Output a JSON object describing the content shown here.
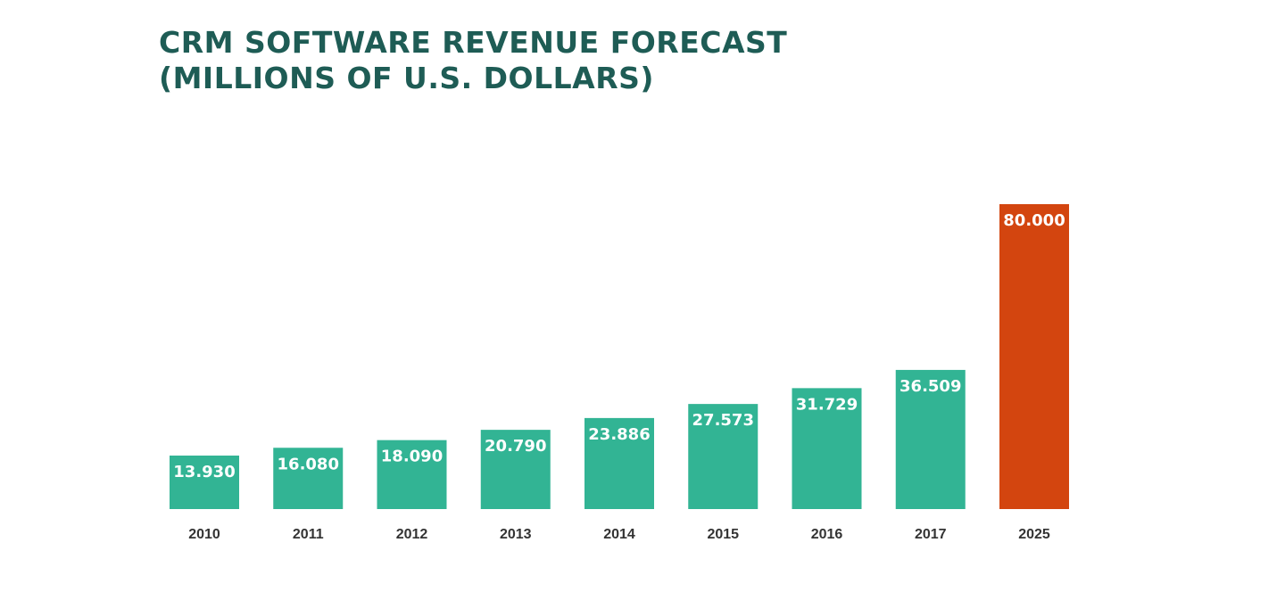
{
  "chart_data": {
    "type": "bar",
    "title_lines": [
      "CRM SOFTWARE REVENUE FORECAST",
      "(MILLIONS OF U.S. DOLLARS)"
    ],
    "xlabel": "",
    "ylabel": "",
    "categories": [
      "2010",
      "2011",
      "2012",
      "2013",
      "2014",
      "2015",
      "2016",
      "2017",
      "2025"
    ],
    "values": [
      13930,
      16080,
      18090,
      20790,
      23886,
      27573,
      31729,
      36509,
      80000
    ],
    "data_labels": [
      "13.930",
      "16.080",
      "18.090",
      "20.790",
      "23.886",
      "27.573",
      "31.729",
      "36.509",
      "80.000"
    ],
    "ylim": [
      0,
      80000
    ],
    "grid": false,
    "legend": "none",
    "colors": {
      "actual": "#32b494",
      "forecast": "#d3450f",
      "title": "#1e5c55",
      "tick_text": "#333333",
      "label_text": "#ffffff"
    },
    "forecast_categories": [
      "2025"
    ]
  }
}
